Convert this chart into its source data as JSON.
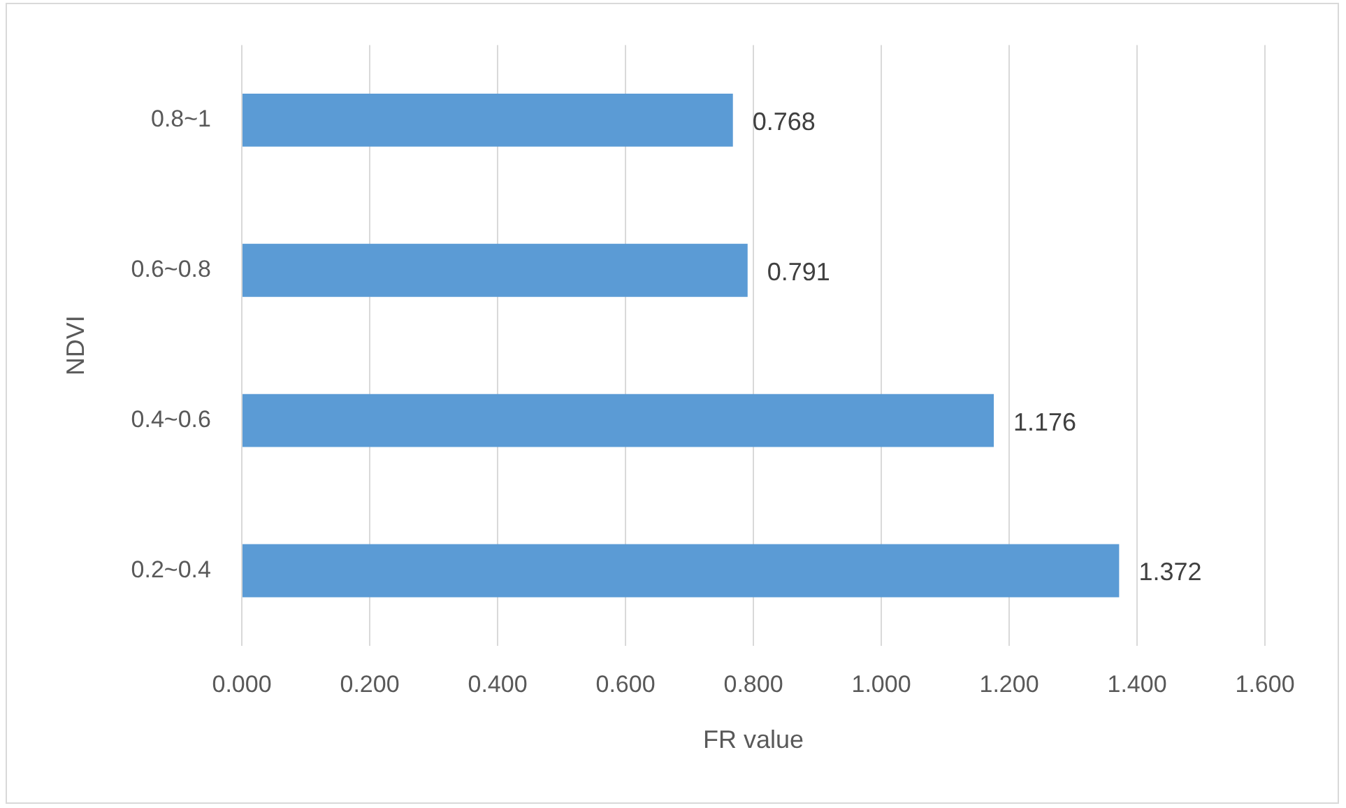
{
  "chart_data": {
    "type": "bar",
    "orientation": "horizontal",
    "xlabel": "FR value",
    "ylabel": "NDVI",
    "categories": [
      "0.8~1",
      "0.6~0.8",
      "0.4~0.6",
      "0.2~0.4"
    ],
    "values": [
      0.768,
      0.791,
      1.176,
      1.372
    ],
    "color": "#5b9bd5",
    "xlim": [
      0,
      1.6
    ],
    "xticks": [
      {
        "value": 0,
        "label": "0.000"
      },
      {
        "value": 0.2,
        "label": "0.200"
      },
      {
        "value": 0.4,
        "label": "0.400"
      },
      {
        "value": 0.6,
        "label": "0.600"
      },
      {
        "value": 0.8,
        "label": "0.800"
      },
      {
        "value": 1.0,
        "label": "1.000"
      },
      {
        "value": 1.2,
        "label": "1.200"
      },
      {
        "value": 1.4,
        "label": "1.400"
      },
      {
        "value": 1.6,
        "label": "1.600"
      }
    ],
    "grid": "x",
    "data_labels": true
  }
}
